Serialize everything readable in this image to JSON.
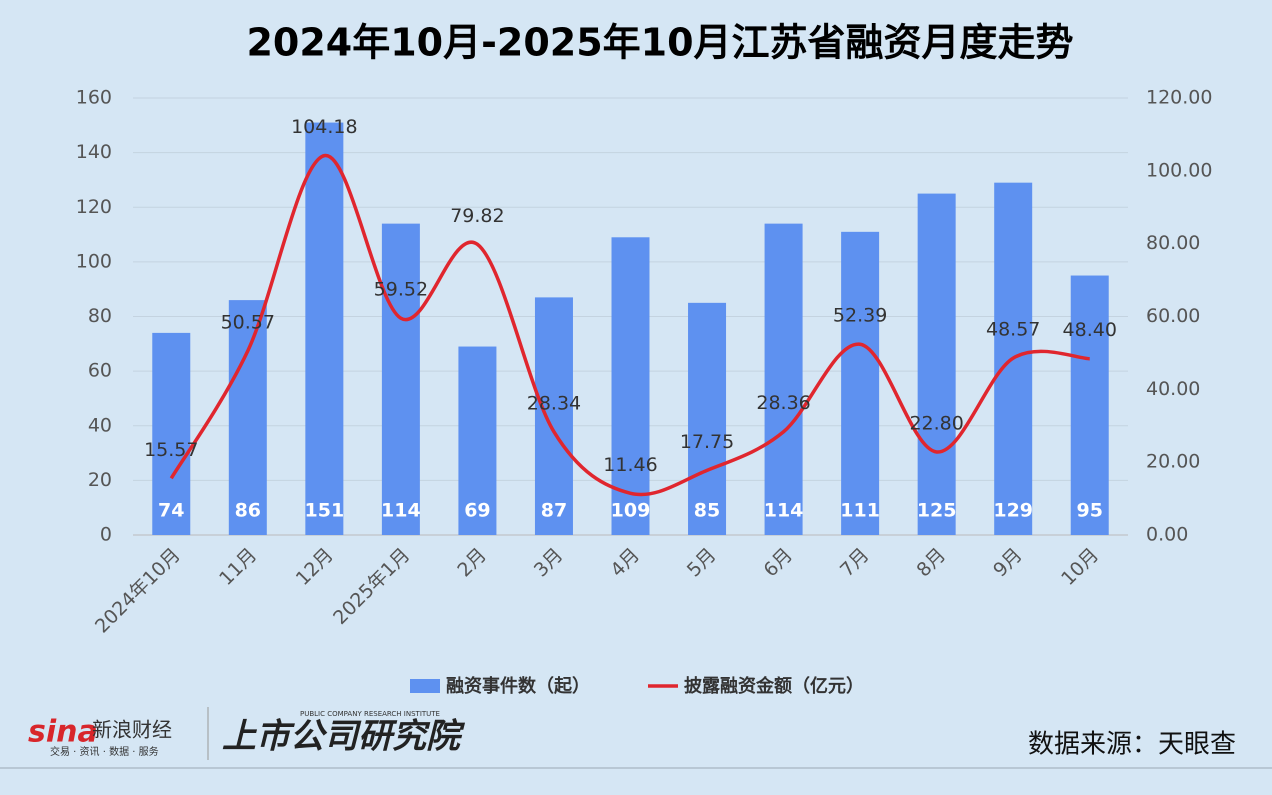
{
  "chart_data": {
    "type": "bar-line",
    "title": "2024年10月-2025年10月江苏省融资月度走势",
    "categories": [
      "2024年10月",
      "11月",
      "12月",
      "2025年1月",
      "2月",
      "3月",
      "4月",
      "5月",
      "6月",
      "7月",
      "8月",
      "9月",
      "10月"
    ],
    "series": [
      {
        "name": "融资事件数（起）",
        "color": "#5e91f0",
        "type": "bar",
        "values": [
          74,
          86,
          151,
          114,
          69,
          87,
          109,
          85,
          114,
          111,
          125,
          129,
          95
        ]
      },
      {
        "name": "披露融资金额（亿元）",
        "color": "#e0262e",
        "type": "line",
        "axis": "y2",
        "values": [
          15.57,
          50.57,
          104.18,
          59.52,
          79.82,
          28.34,
          11.46,
          17.75,
          28.36,
          52.39,
          22.8,
          48.57,
          48.4
        ],
        "value_labels": [
          "15.57",
          "50.57",
          "104.18",
          "59.52",
          "79.82",
          "28.34",
          "11.46",
          "17.75",
          "28.36",
          "52.39",
          "22.80",
          "48.57",
          "48.40"
        ]
      }
    ],
    "ylim": [
      0,
      160
    ],
    "yticks": [
      0,
      20,
      40,
      60,
      80,
      100,
      120,
      140,
      160
    ],
    "y2lim": [
      0,
      120
    ],
    "y2ticks": [
      {
        "value": 0,
        "label": "0.00"
      },
      {
        "value": 20,
        "label": "20.00"
      },
      {
        "value": 40,
        "label": "40.00"
      },
      {
        "value": 60,
        "label": "60.00"
      },
      {
        "value": 80,
        "label": "80.00"
      },
      {
        "value": 100,
        "label": "100.00"
      },
      {
        "value": 120,
        "label": "120.00"
      }
    ],
    "grid": true
  },
  "footer": {
    "logo": "sina",
    "logo_name": "新浪财经",
    "logo_tagline": "交易 · 资讯 · 数据 · 服务",
    "institute_en": "PUBLIC COMPANY RESEARCH INSTITUTE",
    "institute": "上市公司研究院",
    "source": "数据来源：天眼查"
  }
}
